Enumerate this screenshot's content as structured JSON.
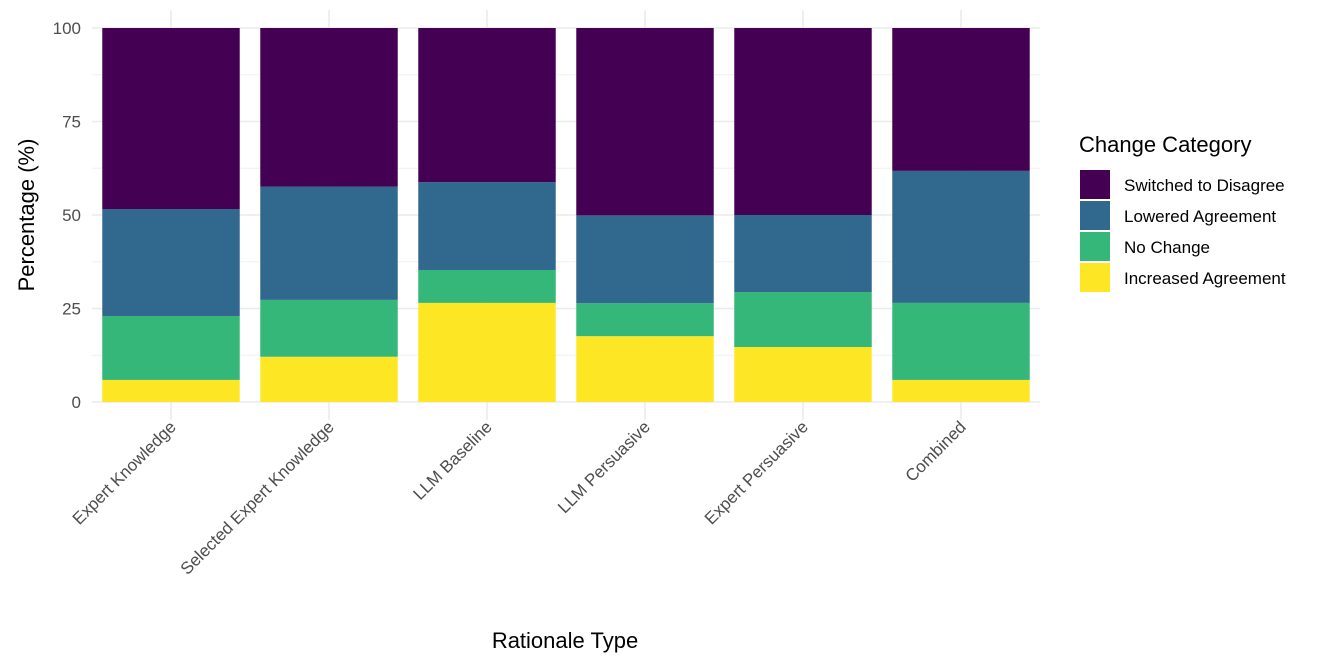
{
  "chart_data": {
    "type": "bar",
    "stacked": true,
    "categories": [
      "Expert Knowledge",
      "Selected Expert Knowledge",
      "LLM Baseline",
      "LLM Persuasive",
      "Expert Persuasive",
      "Combined"
    ],
    "series": [
      {
        "name": "Increased Agreement",
        "color": "#FDE725",
        "values": [
          5.9,
          12.1,
          26.5,
          17.6,
          14.7,
          5.9
        ]
      },
      {
        "name": "No Change",
        "color": "#35B779",
        "values": [
          17.1,
          15.2,
          8.8,
          8.8,
          14.7,
          20.6
        ]
      },
      {
        "name": "Lowered Agreement",
        "color": "#31688E",
        "values": [
          28.6,
          30.3,
          23.5,
          23.5,
          20.6,
          35.3
        ]
      },
      {
        "name": "Switched to Disagree",
        "color": "#440154",
        "values": [
          48.4,
          42.4,
          41.2,
          50.1,
          50.0,
          38.2
        ]
      }
    ],
    "title": "",
    "xlabel": "Rationale Type",
    "ylabel": "Percentage (%)",
    "ylim": [
      0,
      100
    ],
    "yticks": [
      0,
      25,
      50,
      75,
      100
    ],
    "grid": true,
    "legend": {
      "title": "Change Category",
      "position": "right",
      "order": [
        "Switched to Disagree",
        "Lowered Agreement",
        "No Change",
        "Increased Agreement"
      ]
    }
  }
}
